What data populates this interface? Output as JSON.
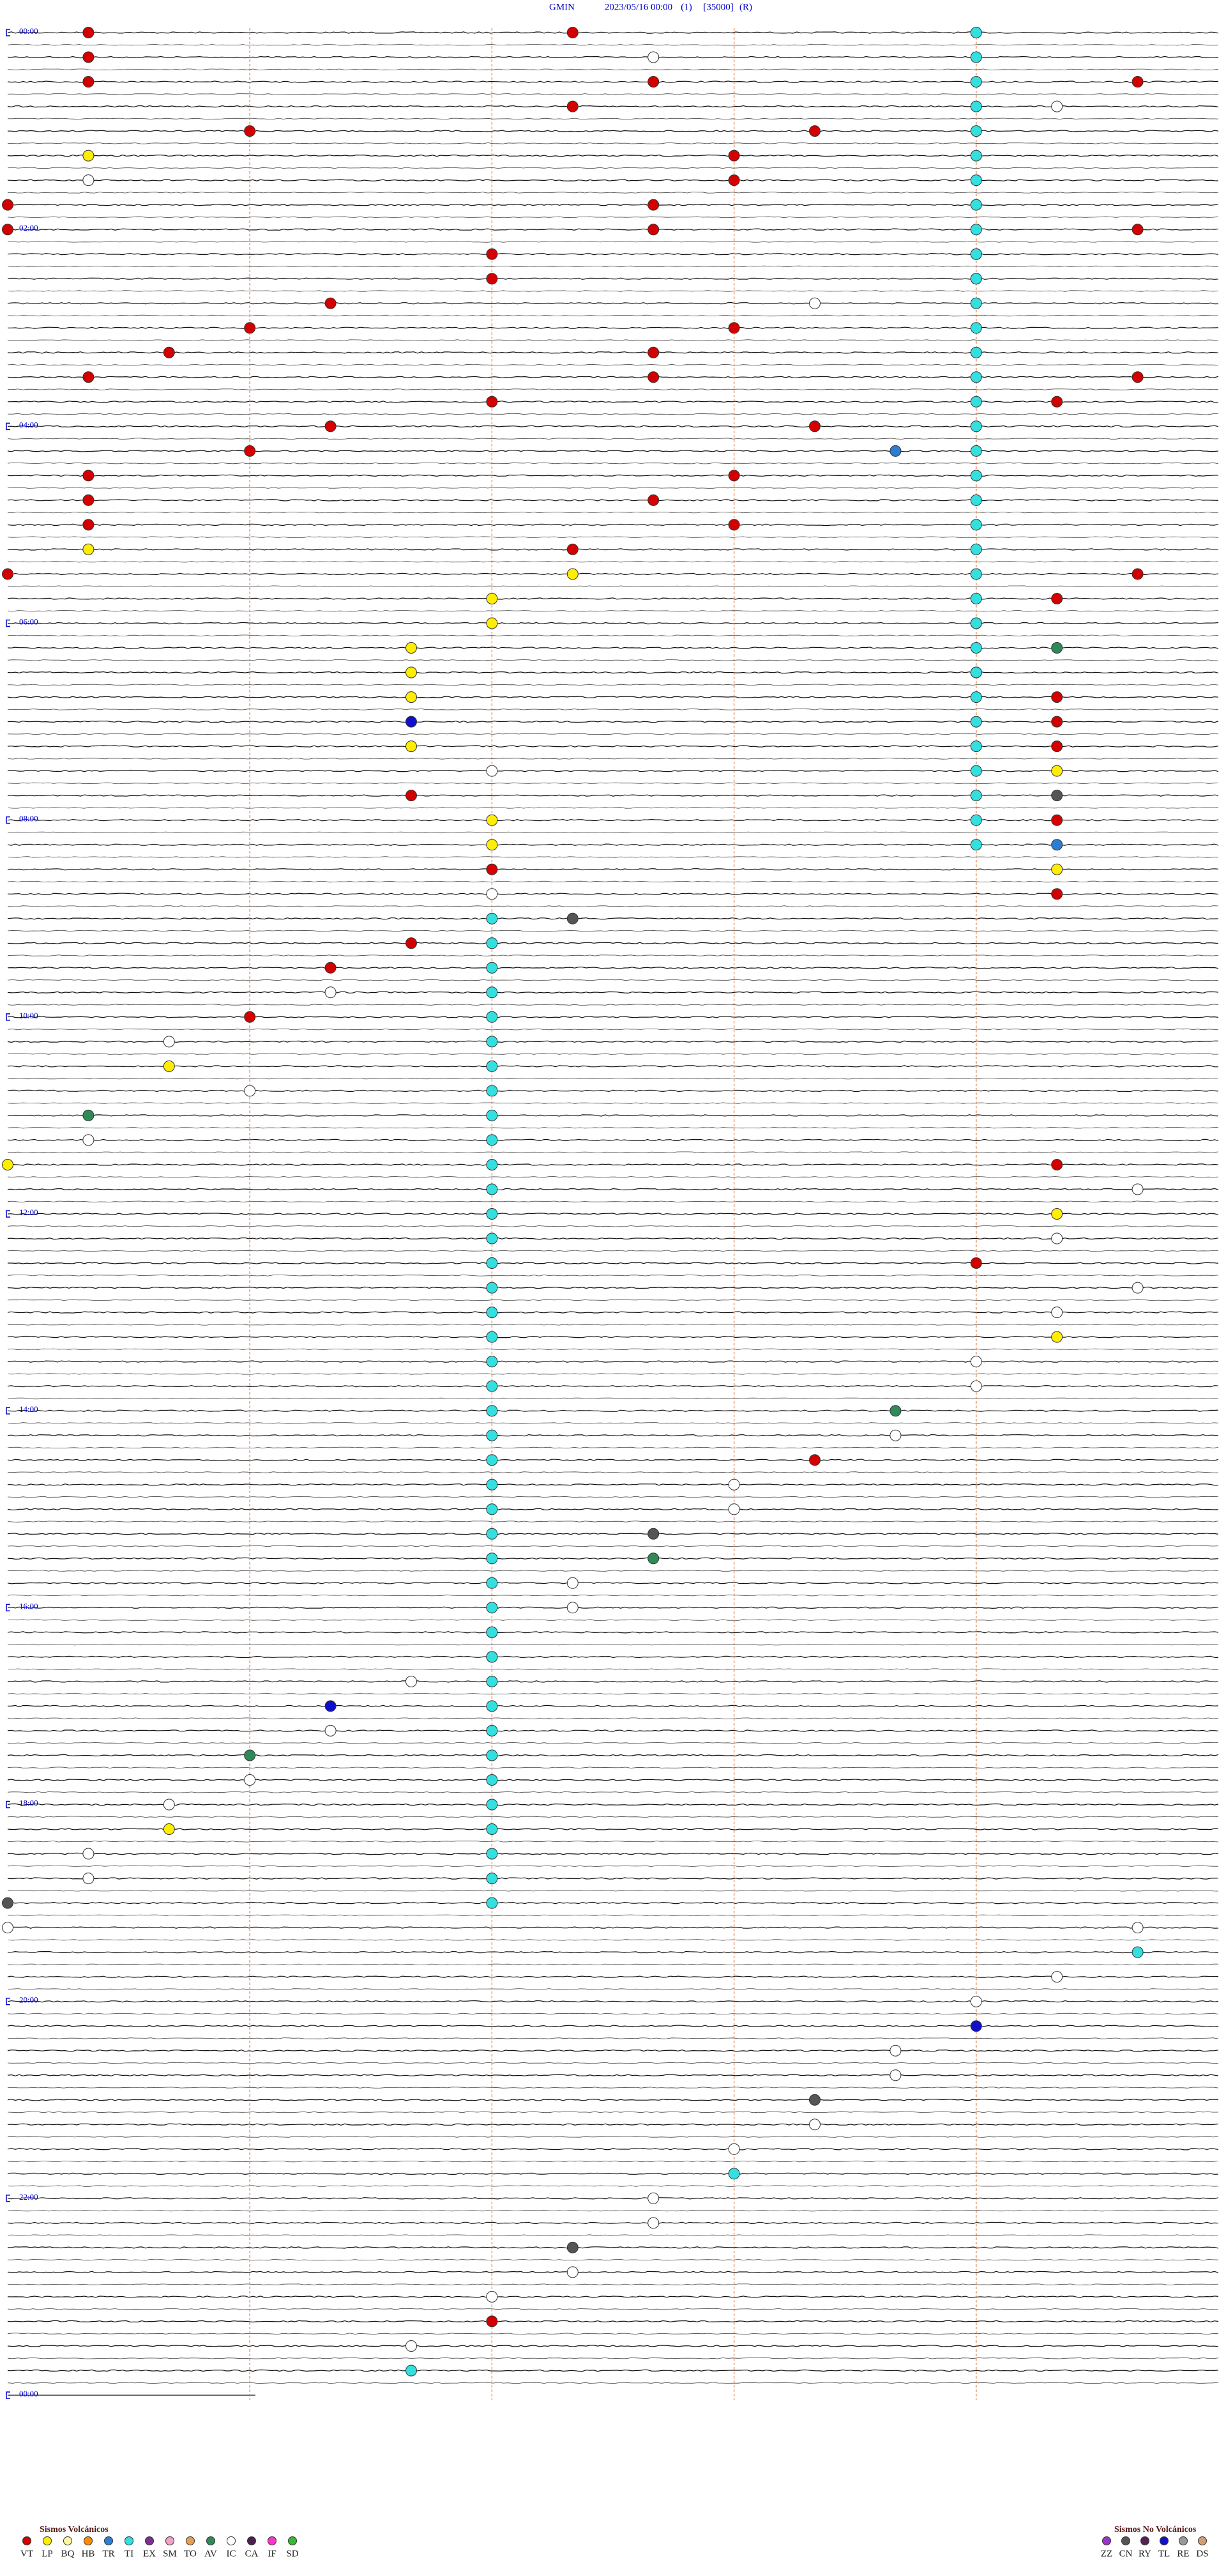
{
  "header": {
    "station": "GMIN",
    "datetime": "2023/05/16 00:00",
    "channel": "(1)",
    "scale": "[35000]",
    "mode": "(R)"
  },
  "time_labels": [
    "00:00",
    "02:00",
    "04:00",
    "06:00",
    "08:00",
    "10:00",
    "12:00",
    "14:00",
    "16:00",
    "18:00",
    "20:00",
    "22:00",
    "00:00"
  ],
  "legend": {
    "volcanic": {
      "title": "Sismos Volcánicos",
      "items": [
        {
          "code": "VT",
          "color": "#d40000"
        },
        {
          "code": "LP",
          "color": "#ffee00"
        },
        {
          "code": "BQ",
          "color": "#fff8a0"
        },
        {
          "code": "HB",
          "color": "#ff8c00"
        },
        {
          "code": "TR",
          "color": "#2a7fd4"
        },
        {
          "code": "TI",
          "color": "#33e0e0"
        },
        {
          "code": "EX",
          "color": "#7a3090"
        },
        {
          "code": "SM",
          "color": "#f4a0c8"
        },
        {
          "code": "TO",
          "color": "#e8a050"
        },
        {
          "code": "AV",
          "color": "#2e8b57"
        },
        {
          "code": "IC",
          "color": "#ffffff"
        },
        {
          "code": "CA",
          "color": "#4b2050"
        },
        {
          "code": "IF",
          "color": "#ff33cc"
        },
        {
          "code": "SD",
          "color": "#33bb33"
        }
      ]
    },
    "non_volcanic": {
      "title": "Sismos No Volcánicos",
      "items": [
        {
          "code": "ZZ",
          "color": "#9933cc"
        },
        {
          "code": "CN",
          "color": "#555555"
        },
        {
          "code": "RY",
          "color": "#552255"
        },
        {
          "code": "TL",
          "color": "#1010cc"
        },
        {
          "code": "RE",
          "color": "#999999"
        },
        {
          "code": "DS",
          "color": "#d2a070"
        }
      ]
    }
  },
  "events": [
    [
      1,
      "VT"
    ],
    [
      7,
      "VT"
    ],
    [
      16,
      "VT"
    ],
    [
      23,
      "IC"
    ],
    [
      31,
      "VT"
    ],
    [
      38,
      "VT"
    ],
    [
      44,
      "VT"
    ],
    [
      52,
      "VT"
    ],
    [
      58,
      "IC"
    ],
    [
      63,
      "VT"
    ],
    [
      70,
      "VT"
    ],
    [
      76,
      "LP"
    ],
    [
      84,
      "VT"
    ],
    [
      91,
      "IC"
    ],
    [
      99,
      "VT"
    ],
    [
      105,
      "VT"
    ],
    [
      113,
      "VT"
    ],
    [
      120,
      "VT"
    ],
    [
      128,
      "VT"
    ],
    [
      134,
      "VT"
    ],
    [
      141,
      "VT"
    ],
    [
      147,
      "VT"
    ],
    [
      156,
      "VT"
    ],
    [
      162,
      "VT"
    ],
    [
      169,
      "VT"
    ],
    [
      175,
      "IC"
    ],
    [
      183,
      "VT"
    ],
    [
      189,
      "VT"
    ],
    [
      197,
      "VT"
    ],
    [
      203,
      "VT"
    ],
    [
      211,
      "VT"
    ],
    [
      218,
      "VT"
    ],
    [
      224,
      "VT"
    ],
    [
      231,
      "VT"
    ],
    [
      238,
      "VT"
    ],
    [
      244,
      "VT"
    ],
    [
      250,
      "VT"
    ],
    [
      258,
      "VT"
    ],
    [
      266,
      "TR"
    ],
    [
      271,
      "VT"
    ],
    [
      279,
      "VT"
    ],
    [
      286,
      "VT"
    ],
    [
      293,
      "VT"
    ],
    [
      301,
      "VT"
    ],
    [
      309,
      "VT"
    ],
    [
      316,
      "LP"
    ],
    [
      322,
      "VT"
    ],
    [
      330,
      "VT"
    ],
    [
      337,
      "LP"
    ],
    [
      344,
      "VT"
    ],
    [
      351,
      "LP"
    ],
    [
      358,
      "VT"
    ],
    [
      366,
      "LP"
    ],
    [
      372,
      "VT"
    ],
    [
      380,
      "LP"
    ],
    [
      388,
      "AV"
    ],
    [
      395,
      "LP"
    ],
    [
      402,
      "VT"
    ],
    [
      410,
      "LP"
    ],
    [
      418,
      "VT"
    ],
    [
      425,
      "TL"
    ],
    [
      433,
      "VT"
    ],
    [
      440,
      "LP"
    ],
    [
      448,
      "VT"
    ],
    [
      456,
      "IC"
    ],
    [
      463,
      "LP"
    ],
    [
      470,
      "VT"
    ],
    [
      478,
      "CN"
    ],
    [
      486,
      "LP"
    ],
    [
      493,
      "VT"
    ],
    [
      501,
      "LP"
    ],
    [
      508,
      "TR"
    ],
    [
      516,
      "VT"
    ],
    [
      523,
      "LP"
    ],
    [
      531,
      "IC"
    ],
    [
      538,
      "VT"
    ],
    [
      547,
      "CN"
    ],
    [
      560,
      "VT"
    ],
    [
      574,
      "VT"
    ],
    [
      589,
      "IC"
    ],
    [
      603,
      "VT"
    ],
    [
      617,
      "IC"
    ],
    [
      632,
      "LP"
    ],
    [
      648,
      "IC"
    ],
    [
      661,
      "AV"
    ],
    [
      676,
      "IC"
    ],
    [
      690,
      "LP"
    ],
    [
      703,
      "VT"
    ],
    [
      719,
      "IC"
    ],
    [
      733,
      "LP"
    ],
    [
      748,
      "IC"
    ],
    [
      762,
      "VT"
    ],
    [
      779,
      "IC"
    ],
    [
      793,
      "IC"
    ],
    [
      808,
      "LP"
    ],
    [
      822,
      "IC"
    ],
    [
      837,
      "IC"
    ],
    [
      851,
      "AV"
    ],
    [
      866,
      "IC"
    ],
    [
      880,
      "VT"
    ],
    [
      894,
      "IC"
    ],
    [
      909,
      "IC"
    ],
    [
      923,
      "CN"
    ],
    [
      938,
      "AV"
    ],
    [
      952,
      "IC"
    ],
    [
      967,
      "IC"
    ],
    [
      981,
      "LP"
    ],
    [
      996,
      "IC"
    ],
    [
      1010,
      "IC"
    ],
    [
      1024,
      "TL"
    ],
    [
      1039,
      "IC"
    ],
    [
      1053,
      "AV"
    ],
    [
      1068,
      "IC"
    ],
    [
      1082,
      "IC"
    ],
    [
      1097,
      "LP"
    ],
    [
      1111,
      "IC"
    ],
    [
      1126,
      "IC"
    ],
    [
      1140,
      "CN"
    ],
    [
      1155,
      "IC"
    ],
    [
      1169,
      "IC"
    ],
    [
      1184,
      "TI"
    ],
    [
      1198,
      "IC"
    ],
    [
      1212,
      "IC"
    ],
    [
      1227,
      "TL"
    ],
    [
      1241,
      "IC"
    ],
    [
      1256,
      "IC"
    ],
    [
      1270,
      "CN"
    ],
    [
      1285,
      "IC"
    ],
    [
      1299,
      "IC"
    ],
    [
      1314,
      "TI"
    ],
    [
      1328,
      "IC"
    ],
    [
      1343,
      "IC"
    ],
    [
      1357,
      "CN"
    ],
    [
      1372,
      "IC"
    ],
    [
      1386,
      "IC"
    ],
    [
      1401,
      "VT"
    ],
    [
      1415,
      "IC"
    ],
    [
      1430,
      "TI"
    ],
    [
      12,
      "TI"
    ],
    [
      27,
      "TI"
    ],
    [
      42,
      "TI"
    ],
    [
      57,
      "TI"
    ],
    [
      72,
      "TI"
    ],
    [
      87,
      "TI"
    ],
    [
      102,
      "TI"
    ],
    [
      117,
      "TI"
    ],
    [
      132,
      "TI"
    ],
    [
      147,
      "TI"
    ],
    [
      162,
      "TI"
    ],
    [
      177,
      "TI"
    ],
    [
      192,
      "TI"
    ],
    [
      207,
      "TI"
    ],
    [
      222,
      "TI"
    ],
    [
      237,
      "TI"
    ],
    [
      252,
      "TI"
    ],
    [
      267,
      "TI"
    ],
    [
      282,
      "TI"
    ],
    [
      297,
      "TI"
    ],
    [
      312,
      "TI"
    ],
    [
      327,
      "TI"
    ],
    [
      342,
      "TI"
    ],
    [
      357,
      "TI"
    ],
    [
      372,
      "TI"
    ],
    [
      387,
      "TI"
    ],
    [
      402,
      "TI"
    ],
    [
      417,
      "TI"
    ],
    [
      432,
      "TI"
    ],
    [
      447,
      "TI"
    ],
    [
      462,
      "TI"
    ],
    [
      477,
      "TI"
    ],
    [
      492,
      "TI"
    ],
    [
      507,
      "TI"
    ],
    [
      546,
      "TI"
    ],
    [
      561,
      "TI"
    ],
    [
      576,
      "TI"
    ],
    [
      591,
      "TI"
    ],
    [
      606,
      "TI"
    ],
    [
      621,
      "TI"
    ],
    [
      636,
      "TI"
    ],
    [
      651,
      "TI"
    ],
    [
      666,
      "TI"
    ],
    [
      681,
      "TI"
    ],
    [
      696,
      "TI"
    ],
    [
      711,
      "TI"
    ],
    [
      726,
      "TI"
    ],
    [
      741,
      "TI"
    ],
    [
      756,
      "TI"
    ],
    [
      771,
      "TI"
    ],
    [
      786,
      "TI"
    ],
    [
      801,
      "TI"
    ],
    [
      816,
      "TI"
    ],
    [
      831,
      "TI"
    ],
    [
      846,
      "TI"
    ],
    [
      861,
      "TI"
    ],
    [
      876,
      "TI"
    ],
    [
      891,
      "TI"
    ],
    [
      906,
      "TI"
    ],
    [
      921,
      "TI"
    ],
    [
      936,
      "TI"
    ],
    [
      951,
      "TI"
    ],
    [
      966,
      "TI"
    ],
    [
      981,
      "TI"
    ],
    [
      996,
      "TI"
    ],
    [
      1011,
      "TI"
    ],
    [
      1026,
      "TI"
    ],
    [
      1041,
      "TI"
    ],
    [
      1056,
      "TI"
    ],
    [
      1071,
      "TI"
    ],
    [
      1086,
      "TI"
    ],
    [
      1101,
      "TI"
    ],
    [
      1116,
      "TI"
    ],
    [
      1131,
      "TI"
    ],
    [
      1146,
      "TI"
    ]
  ]
}
